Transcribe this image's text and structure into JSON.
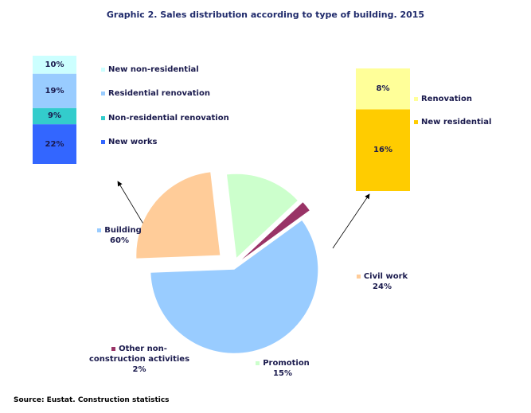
{
  "title": "Graphic 2. Sales distribution according to type of building. 2015",
  "source": "Source: Eustat. Construction statistics",
  "chart_data": [
    {
      "type": "pie",
      "categories": [
        "Building",
        "Civil work",
        "Promotion",
        "Other non-construction activities"
      ],
      "values": [
        60,
        24,
        15,
        2
      ],
      "value_labels": [
        "60%",
        "24%",
        "15%",
        "2%"
      ],
      "colors": [
        "#99ccff",
        "#ffcc99",
        "#ccffcc",
        "#993366"
      ]
    },
    {
      "type": "bar",
      "stacked": true,
      "series": [
        {
          "name": "New works",
          "color": "#3366ff",
          "values": [
            22
          ],
          "value_labels": [
            "22%"
          ]
        },
        {
          "name": "Non-residential renovation",
          "color": "#33cccc",
          "values": [
            9
          ],
          "value_labels": [
            "9%"
          ]
        },
        {
          "name": "Residential renovation",
          "color": "#99ccff",
          "values": [
            19
          ],
          "value_labels": [
            "19%"
          ]
        },
        {
          "name": "New non-residential",
          "color": "#ccffff",
          "values": [
            10
          ],
          "value_labels": [
            "10%"
          ]
        }
      ]
    },
    {
      "type": "bar",
      "stacked": true,
      "series": [
        {
          "name": "New residential",
          "color": "#ffcc00",
          "values": [
            16
          ],
          "value_labels": [
            "16%"
          ]
        },
        {
          "name": "Renovation",
          "color": "#ffff99",
          "values": [
            8
          ],
          "value_labels": [
            "8%"
          ]
        }
      ]
    }
  ]
}
